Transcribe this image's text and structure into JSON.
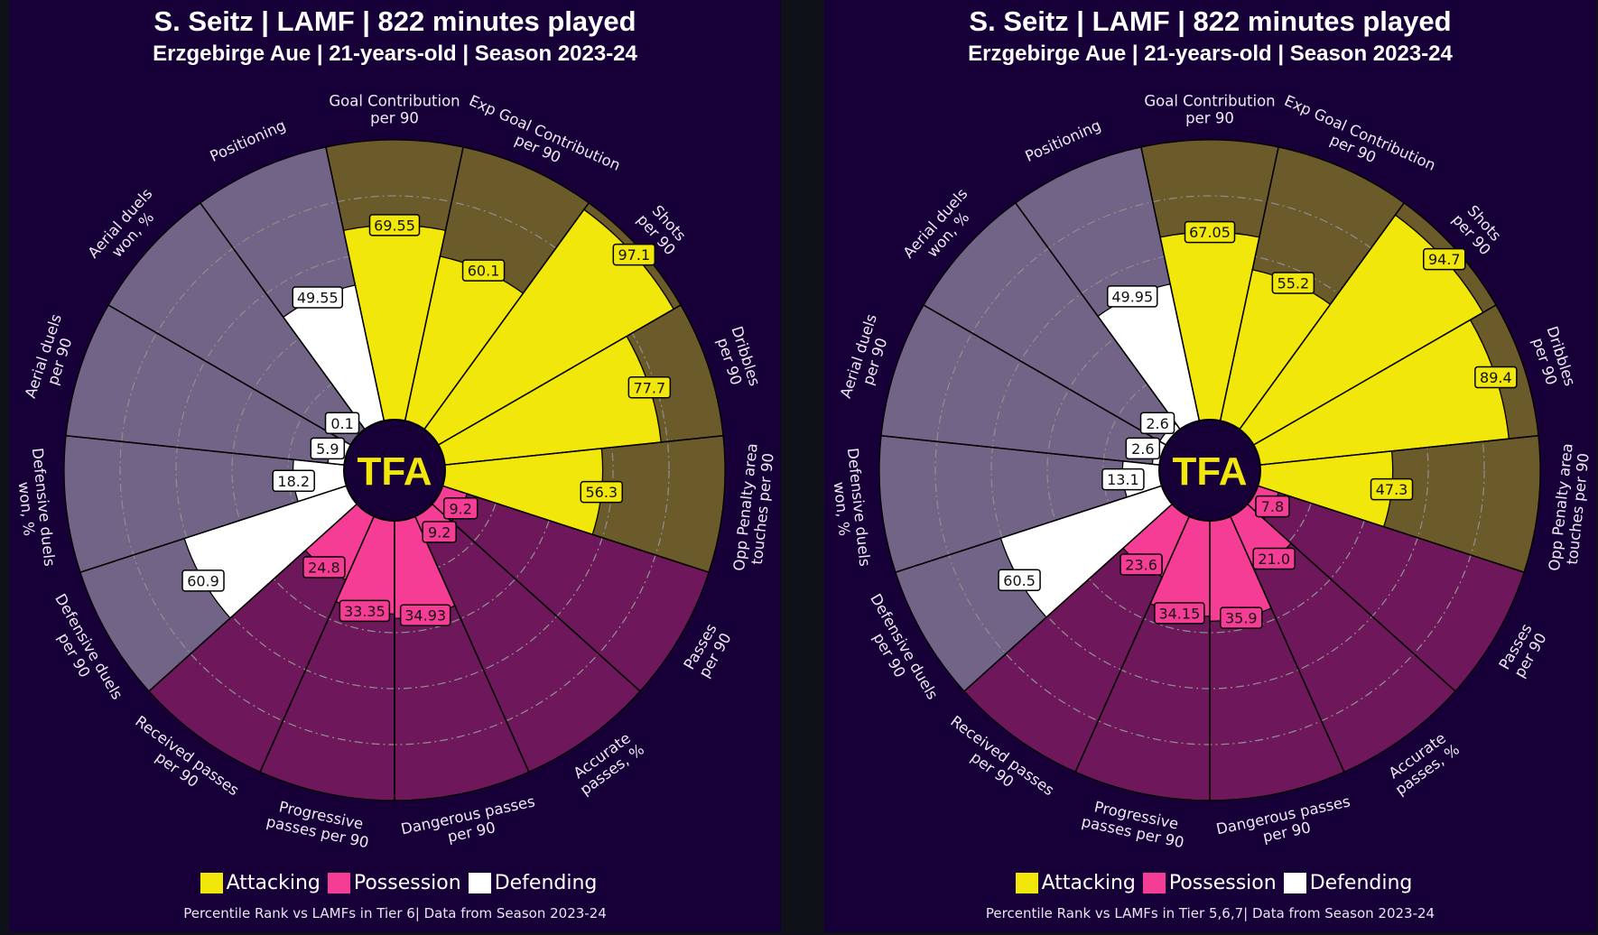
{
  "colors": {
    "attacking": "#f2e70a",
    "attacking_bg": "#6b5a2a",
    "possession": "#f53d96",
    "possession_bg": "#6e185b",
    "defending": "#ffffff",
    "defending_bg": "#726486",
    "panel_bg": "#170038",
    "grid": "#8c8c8c"
  },
  "logo_text": "TFA",
  "legend": [
    {
      "label": "Attacking",
      "color": "#f2e70a"
    },
    {
      "label": "Possession",
      "color": "#f53d96"
    },
    {
      "label": "Defending",
      "color": "#ffffff"
    }
  ],
  "panels": [
    {
      "title": "S. Seitz | LAMF | 822 minutes played",
      "subtitle": "Erzgebirge Aue | 21-years-old | Season 2023-24",
      "footer": "Percentile Rank vs LAMFs in Tier 6| Data from Season 2023-24"
    },
    {
      "title": "S. Seitz | LAMF | 822 minutes played",
      "subtitle": "Erzgebirge Aue | 21-years-old | Season 2023-24",
      "footer": "Percentile Rank vs LAMFs in Tier 5,6,7| Data from Season 2023-24"
    }
  ],
  "chart_data": [
    {
      "type": "pizza",
      "rlim": [
        0,
        100
      ],
      "grid": [
        20,
        40,
        60,
        80
      ],
      "categories": [
        "Goal Contribution\nper 90",
        "Exp Goal Contribution\nper 90",
        "Shots\nper 90",
        "Dribbles\nper 90",
        "Opp Penalty area\ntouches per 90",
        "Passes\nper 90",
        "Accurate\npasses, %",
        "Dangerous passes\nper 90",
        "Progressive\npasses per 90",
        "Received passes\nper 90",
        "Defensive duels\nper 90",
        "Defensive duels\nwon, %",
        "Aerial duels\nper 90",
        "Aerial duels\nwon, %",
        "Positioning"
      ],
      "groups": [
        "attacking",
        "attacking",
        "attacking",
        "attacking",
        "attacking",
        "possession",
        "possession",
        "possession",
        "possession",
        "possession",
        "defending",
        "defending",
        "defending",
        "defending",
        "defending"
      ],
      "values": [
        69.55,
        60.1,
        97.1,
        77.7,
        56.3,
        9.2,
        9.2,
        34.93,
        33.35,
        24.8,
        60.9,
        18.2,
        5.9,
        0.1,
        49.55
      ],
      "value_labels": [
        "69.55",
        "60.1",
        "97.1",
        "77.7",
        "56.3",
        "9.2",
        "9.2",
        "34.93",
        "33.35",
        "24.8",
        "60.9",
        "18.2",
        "5.9",
        "0.1",
        "49.55"
      ]
    },
    {
      "type": "pizza",
      "rlim": [
        0,
        100
      ],
      "grid": [
        20,
        40,
        60,
        80
      ],
      "categories": [
        "Goal Contribution\nper 90",
        "Exp Goal Contribution\nper 90",
        "Shots\nper 90",
        "Dribbles\nper 90",
        "Opp Penalty area\ntouches per 90",
        "Passes\nper 90",
        "Accurate\npasses, %",
        "Dangerous passes\nper 90",
        "Progressive\npasses per 90",
        "Received passes\nper 90",
        "Defensive duels\nper 90",
        "Defensive duels\nwon, %",
        "Aerial duels\nper 90",
        "Aerial duels\nwon, %",
        "Positioning"
      ],
      "groups": [
        "attacking",
        "attacking",
        "attacking",
        "attacking",
        "attacking",
        "possession",
        "possession",
        "possession",
        "possession",
        "possession",
        "defending",
        "defending",
        "defending",
        "defending",
        "defending"
      ],
      "values": [
        67.05,
        55.2,
        94.7,
        89.4,
        47.3,
        7.8,
        21.0,
        35.9,
        34.15,
        23.6,
        60.5,
        13.1,
        2.6,
        2.6,
        49.95
      ],
      "value_labels": [
        "67.05",
        "55.2",
        "94.7",
        "89.4",
        "47.3",
        "7.8",
        "21.0",
        "35.9",
        "34.15",
        "23.6",
        "60.5",
        "13.1",
        "2.6",
        "2.6",
        "49.95"
      ]
    }
  ]
}
